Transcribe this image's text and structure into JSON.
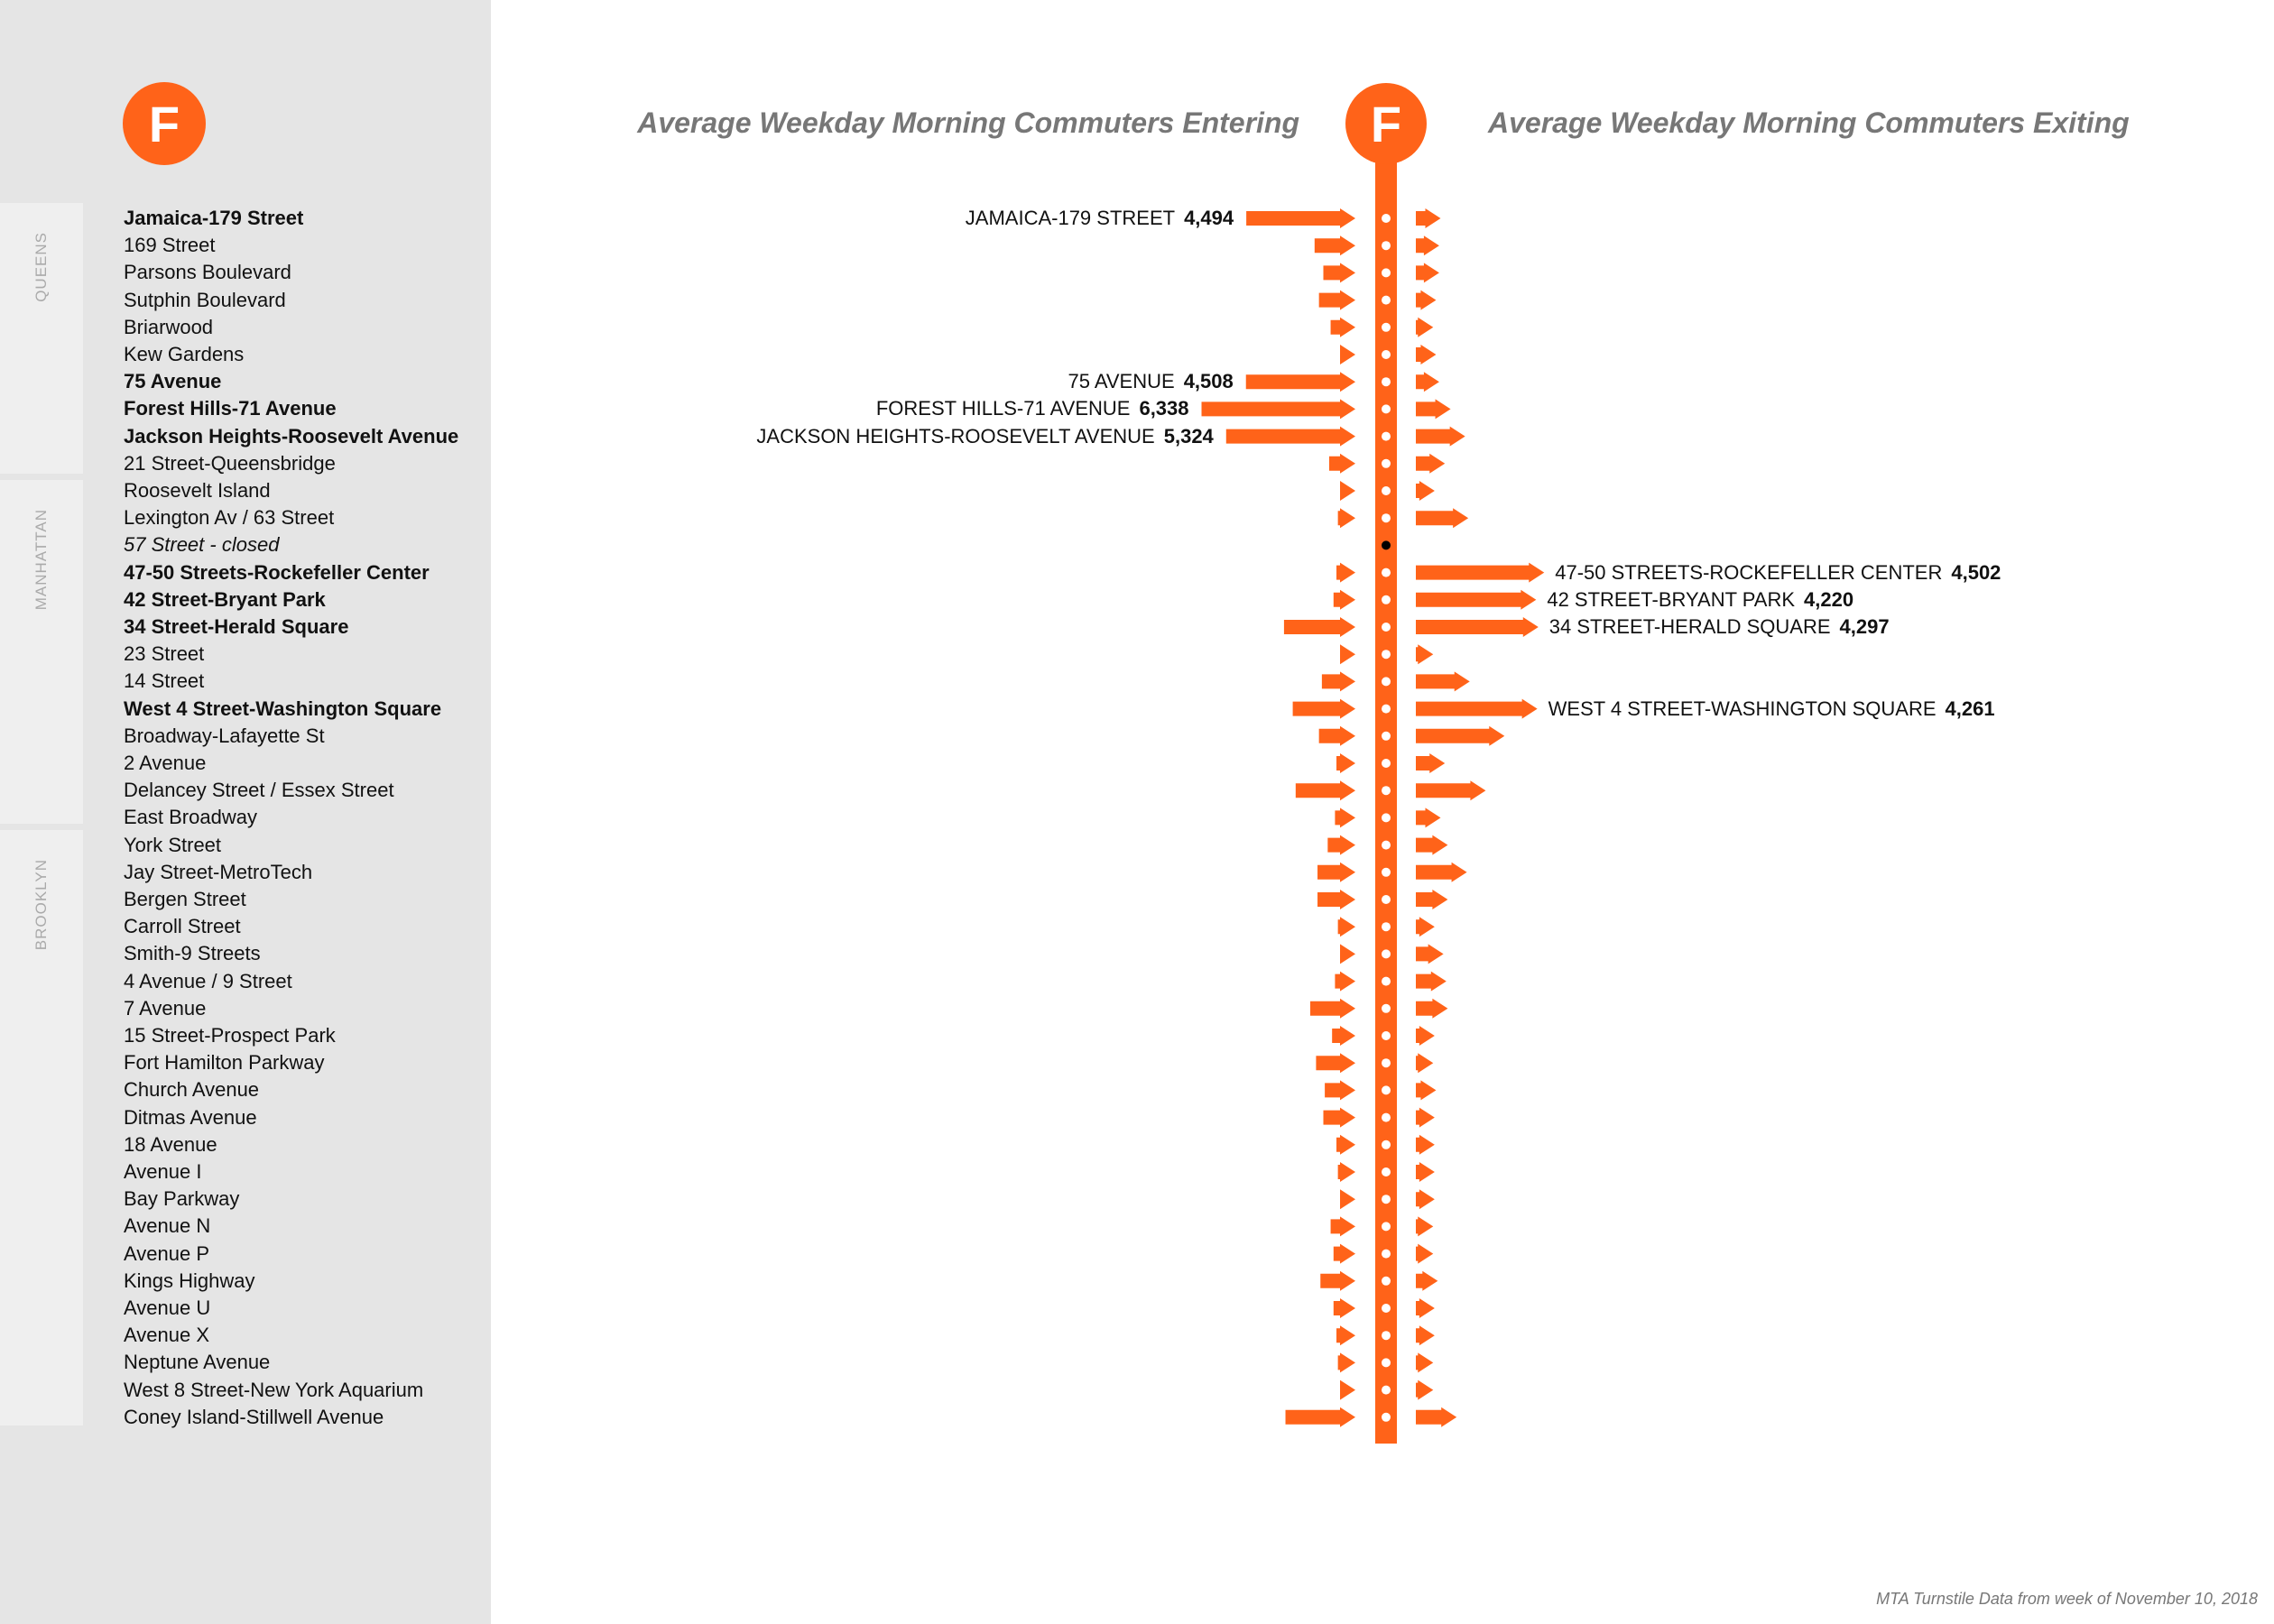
{
  "route": {
    "letter": "F",
    "color": "#ff6319"
  },
  "titles": {
    "entering": "Average Weekday Morning Commuters Entering",
    "exiting": "Average Weekday Morning Commuters Exiting"
  },
  "boroughs": [
    {
      "name": "QUEENS"
    },
    {
      "name": "MANHATTAN"
    },
    {
      "name": "BROOKLYN"
    }
  ],
  "footer": "MTA Turnstile Data from week of November 10, 2018",
  "chart_data": {
    "type": "bar",
    "orientation": "diverging-arrows",
    "series": [
      {
        "name": "Average Weekday Morning Commuters Entering"
      },
      {
        "name": "Average Weekday Morning Commuters Exiting"
      }
    ],
    "stations": [
      {
        "name": "Jamaica-179 Street",
        "style": "bold",
        "enter": 4494,
        "exit": 870,
        "enter_label": "JAMAICA-179 STREET",
        "enter_value": "4,494"
      },
      {
        "name": "169 Street",
        "style": "regular",
        "enter": 1680,
        "exit": 820
      },
      {
        "name": "Parsons Boulevard",
        "style": "regular",
        "enter": 1320,
        "exit": 820
      },
      {
        "name": "Sutphin Boulevard",
        "style": "regular",
        "enter": 1500,
        "exit": 710
      },
      {
        "name": "Briarwood",
        "style": "regular",
        "enter": 1020,
        "exit": 610
      },
      {
        "name": "Kew Gardens",
        "style": "regular",
        "enter": 300,
        "exit": 710
      },
      {
        "name": "75 Avenue",
        "style": "bold",
        "enter": 4508,
        "exit": 820,
        "enter_label": "75 AVENUE",
        "enter_value": "4,508"
      },
      {
        "name": "Forest Hills-71 Avenue",
        "style": "bold",
        "enter": 6338,
        "exit": 1220,
        "enter_label": "FOREST HILLS-71 AVENUE",
        "enter_value": "6,338"
      },
      {
        "name": "Jackson Heights-Roosevelt Avenue",
        "style": "bold",
        "enter": 5324,
        "exit": 1730,
        "enter_label": "JACKSON HEIGHTS-ROOSEVELT AVENUE",
        "enter_value": "5,324"
      },
      {
        "name": "21 Street-Queensbridge",
        "style": "regular",
        "enter": 1080,
        "exit": 1020
      },
      {
        "name": "Roosevelt Island",
        "style": "regular",
        "enter": 600,
        "exit": 660
      },
      {
        "name": "Lexington Av / 63 Street",
        "style": "regular",
        "enter": 720,
        "exit": 1840
      },
      {
        "name": "57 Street - closed",
        "style": "italic",
        "enter": 0,
        "exit": 0,
        "closed": true
      },
      {
        "name": "47-50 Streets-Rockefeller Center",
        "style": "bold",
        "enter": 780,
        "exit": 4502,
        "exit_label": "47-50 STREETS-ROCKEFELLER CENTER",
        "exit_value": "4,502"
      },
      {
        "name": "42 Street-Bryant Park",
        "style": "bold",
        "enter": 900,
        "exit": 4220,
        "exit_label": "42 STREET-BRYANT PARK",
        "exit_value": "4,220"
      },
      {
        "name": "34 Street-Herald Square",
        "style": "bold",
        "enter": 2940,
        "exit": 4297,
        "exit_label": "34 STREET-HERALD SQUARE",
        "exit_value": "4,297"
      },
      {
        "name": "23 Street",
        "style": "regular",
        "enter": 480,
        "exit": 610
      },
      {
        "name": "14 Street",
        "style": "regular",
        "enter": 1380,
        "exit": 1890
      },
      {
        "name": "West 4 Street-Washington Square",
        "style": "bold",
        "enter": 2580,
        "exit": 4261,
        "exit_label": "WEST 4 STREET-WASHINGTON SQUARE",
        "exit_value": "4,261"
      },
      {
        "name": "Broadway-Lafayette St",
        "style": "regular",
        "enter": 1500,
        "exit": 3110
      },
      {
        "name": "2 Avenue",
        "style": "regular",
        "enter": 780,
        "exit": 1020
      },
      {
        "name": "Delancey Street / Essex Street",
        "style": "regular",
        "enter": 2460,
        "exit": 2450
      },
      {
        "name": "East Broadway",
        "style": "regular",
        "enter": 840,
        "exit": 870
      },
      {
        "name": "York Street",
        "style": "regular",
        "enter": 1140,
        "exit": 1120
      },
      {
        "name": "Jay Street-MetroTech",
        "style": "regular",
        "enter": 1560,
        "exit": 1790
      },
      {
        "name": "Bergen Street",
        "style": "regular",
        "enter": 1560,
        "exit": 1120
      },
      {
        "name": "Carroll Street",
        "style": "regular",
        "enter": 720,
        "exit": 660
      },
      {
        "name": "Smith-9 Streets",
        "style": "regular",
        "enter": 600,
        "exit": 970
      },
      {
        "name": "4 Avenue / 9 Street",
        "style": "regular",
        "enter": 840,
        "exit": 1070
      },
      {
        "name": "7 Avenue",
        "style": "regular",
        "enter": 1860,
        "exit": 1120
      },
      {
        "name": "15 Street-Prospect Park",
        "style": "regular",
        "enter": 960,
        "exit": 660
      },
      {
        "name": "Fort Hamilton Parkway",
        "style": "regular",
        "enter": 1620,
        "exit": 610
      },
      {
        "name": "Church Avenue",
        "style": "regular",
        "enter": 1260,
        "exit": 710
      },
      {
        "name": "Ditmas Avenue",
        "style": "regular",
        "enter": 1320,
        "exit": 660
      },
      {
        "name": "18 Avenue",
        "style": "regular",
        "enter": 780,
        "exit": 660
      },
      {
        "name": "Avenue I",
        "style": "regular",
        "enter": 720,
        "exit": 660
      },
      {
        "name": "Bay Parkway",
        "style": "regular",
        "enter": 600,
        "exit": 660
      },
      {
        "name": "Avenue N",
        "style": "regular",
        "enter": 1020,
        "exit": 610
      },
      {
        "name": "Avenue P",
        "style": "regular",
        "enter": 900,
        "exit": 610
      },
      {
        "name": "Kings Highway",
        "style": "regular",
        "enter": 1440,
        "exit": 770
      },
      {
        "name": "Avenue U",
        "style": "regular",
        "enter": 900,
        "exit": 660
      },
      {
        "name": "Avenue X",
        "style": "regular",
        "enter": 780,
        "exit": 660
      },
      {
        "name": "Neptune Avenue",
        "style": "regular",
        "enter": 720,
        "exit": 610
      },
      {
        "name": "West 8 Street-New York Aquarium",
        "style": "regular",
        "enter": 540,
        "exit": 610
      },
      {
        "name": "Coney Island-Stillwell Avenue",
        "style": "regular",
        "enter": 2880,
        "exit": 1430
      }
    ]
  }
}
